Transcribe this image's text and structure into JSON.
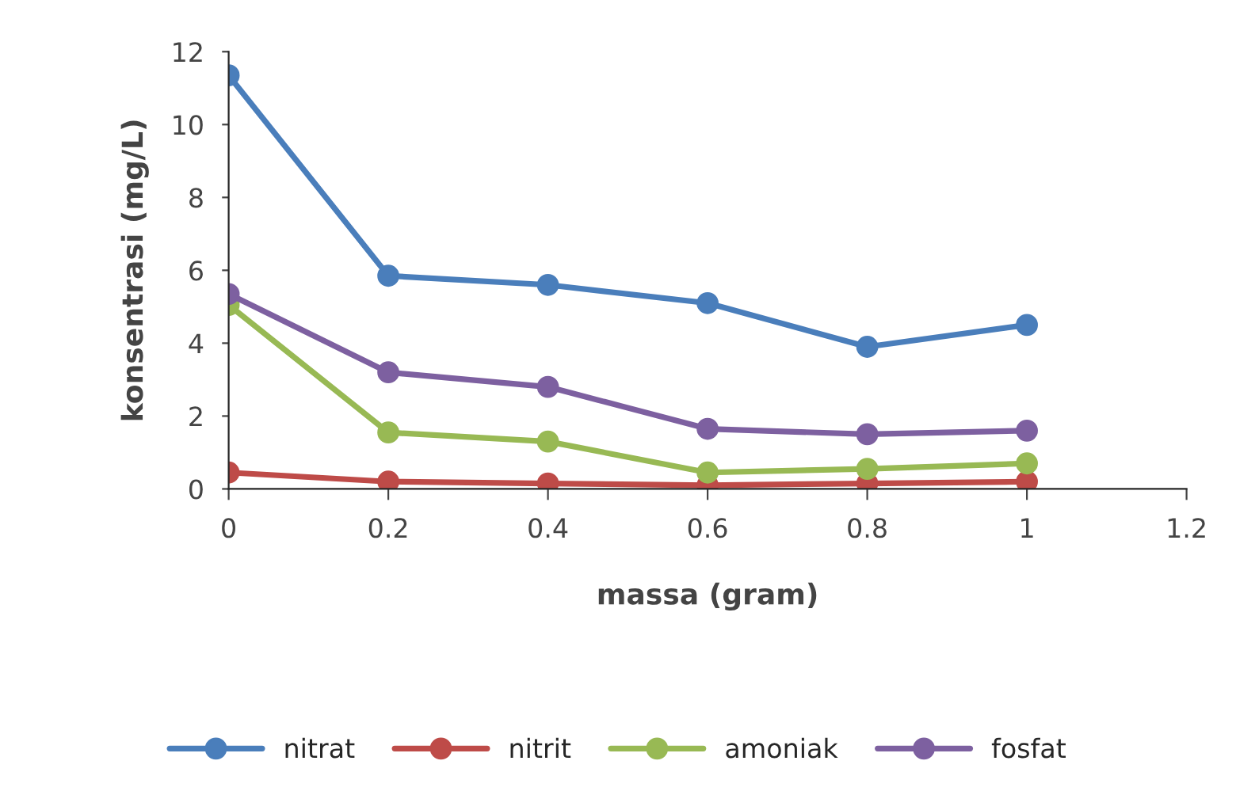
{
  "chart_data": {
    "type": "line",
    "xlabel": "massa (gram)",
    "ylabel": "konsentrasi (mg/L)",
    "x": [
      0,
      0.2,
      0.4,
      0.6,
      0.8,
      1
    ],
    "series": [
      {
        "name": "nitrat",
        "color": "#4a7ebb",
        "values": [
          11.35,
          5.85,
          5.6,
          5.1,
          3.9,
          4.5
        ]
      },
      {
        "name": "nitrit",
        "color": "#be4b48",
        "values": [
          0.45,
          0.2,
          0.15,
          0.1,
          0.15,
          0.2
        ]
      },
      {
        "name": "amoniak",
        "color": "#98b954",
        "values": [
          5.05,
          1.55,
          1.3,
          0.45,
          0.55,
          0.7
        ]
      },
      {
        "name": "fosfat",
        "color": "#7d60a0",
        "values": [
          5.35,
          3.2,
          2.8,
          1.65,
          1.5,
          1.6
        ]
      }
    ],
    "xlim": [
      0,
      1.2
    ],
    "xticks": [
      0,
      0.2,
      0.4,
      0.6,
      0.8,
      1,
      1.2
    ],
    "ylim": [
      0,
      12
    ],
    "yticks": [
      0,
      2,
      4,
      6,
      8,
      10,
      12
    ],
    "grid": false,
    "legend": "bottom",
    "marker": "circle",
    "line_style": "solid"
  }
}
